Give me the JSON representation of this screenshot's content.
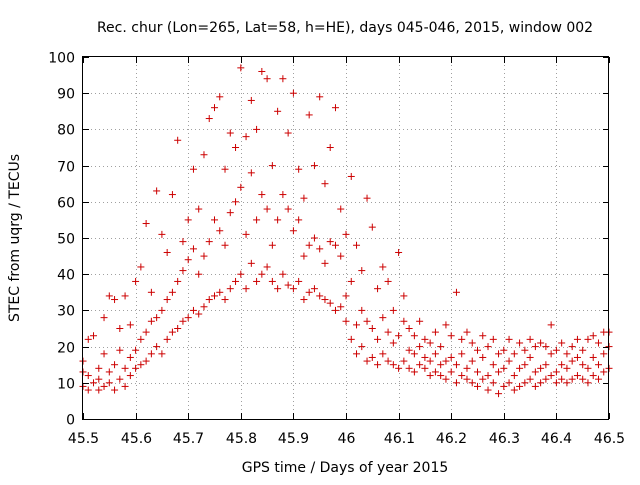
{
  "chart_data": {
    "type": "scatter",
    "title": "Rec. chur (Lon=265, Lat=58, h=HE), days 045-046, 2015, window 002",
    "xlabel": "GPS time / Days of year 2015",
    "ylabel": "STEC from uqrg / TECUs",
    "xlim": [
      45.5,
      46.5
    ],
    "ylim": [
      0,
      100
    ],
    "xticks": [
      45.5,
      45.6,
      45.7,
      45.8,
      45.9,
      46,
      46.1,
      46.2,
      46.3,
      46.4,
      46.5
    ],
    "xtick_labels": [
      "45.5",
      "45.6",
      "45.7",
      "45.8",
      "45.9",
      "46",
      "46.1",
      "46.2",
      "46.3",
      "46.4",
      "46.5"
    ],
    "yticks": [
      0,
      10,
      20,
      30,
      40,
      50,
      60,
      70,
      80,
      90,
      100
    ],
    "ytick_labels": [
      "0",
      "10",
      "20",
      "30",
      "40",
      "50",
      "60",
      "70",
      "80",
      "90",
      "100"
    ],
    "grid": true,
    "marker": "+",
    "color": "#cc0000",
    "series": [
      {
        "points": [
          [
            45.5,
            9
          ],
          [
            45.5,
            13
          ],
          [
            45.5,
            16
          ],
          [
            45.51,
            8
          ],
          [
            45.51,
            12
          ],
          [
            45.51,
            22
          ],
          [
            45.52,
            10
          ],
          [
            45.52,
            23
          ],
          [
            45.53,
            8
          ],
          [
            45.53,
            11
          ],
          [
            45.53,
            14
          ],
          [
            45.54,
            9
          ],
          [
            45.54,
            18
          ],
          [
            45.54,
            28
          ],
          [
            45.55,
            10
          ],
          [
            45.55,
            13
          ],
          [
            45.55,
            34
          ],
          [
            45.56,
            8
          ],
          [
            45.56,
            15
          ],
          [
            45.56,
            33
          ],
          [
            45.57,
            11
          ],
          [
            45.57,
            19
          ],
          [
            45.57,
            25
          ],
          [
            45.58,
            9
          ],
          [
            45.58,
            14
          ],
          [
            45.58,
            34
          ],
          [
            45.59,
            12
          ],
          [
            45.59,
            17
          ],
          [
            45.59,
            26
          ],
          [
            45.6,
            14
          ],
          [
            45.6,
            19
          ],
          [
            45.6,
            38
          ],
          [
            45.61,
            15
          ],
          [
            45.61,
            22
          ],
          [
            45.61,
            42
          ],
          [
            45.62,
            16
          ],
          [
            45.62,
            24
          ],
          [
            45.62,
            54
          ],
          [
            45.63,
            18
          ],
          [
            45.63,
            27
          ],
          [
            45.63,
            35
          ],
          [
            45.64,
            20
          ],
          [
            45.64,
            28
          ],
          [
            45.64,
            63
          ],
          [
            45.65,
            18
          ],
          [
            45.65,
            30
          ],
          [
            45.65,
            51
          ],
          [
            45.66,
            22
          ],
          [
            45.66,
            33
          ],
          [
            45.66,
            46
          ],
          [
            45.67,
            24
          ],
          [
            45.67,
            35
          ],
          [
            45.67,
            62
          ],
          [
            45.68,
            25
          ],
          [
            45.68,
            38
          ],
          [
            45.68,
            77
          ],
          [
            45.69,
            27
          ],
          [
            45.69,
            41
          ],
          [
            45.69,
            49
          ],
          [
            45.7,
            28
          ],
          [
            45.7,
            44
          ],
          [
            45.7,
            55
          ],
          [
            45.71,
            30
          ],
          [
            45.71,
            47
          ],
          [
            45.71,
            69
          ],
          [
            45.72,
            29
          ],
          [
            45.72,
            40
          ],
          [
            45.72,
            58
          ],
          [
            45.73,
            31
          ],
          [
            45.73,
            45
          ],
          [
            45.73,
            73
          ],
          [
            45.74,
            33
          ],
          [
            45.74,
            49
          ],
          [
            45.74,
            83
          ],
          [
            45.75,
            34
          ],
          [
            45.75,
            55
          ],
          [
            45.75,
            86
          ],
          [
            45.76,
            35
          ],
          [
            45.76,
            52
          ],
          [
            45.76,
            89
          ],
          [
            45.77,
            33
          ],
          [
            45.77,
            48
          ],
          [
            45.77,
            69
          ],
          [
            45.78,
            36
          ],
          [
            45.78,
            57
          ],
          [
            45.78,
            79
          ],
          [
            45.79,
            38
          ],
          [
            45.79,
            60
          ],
          [
            45.79,
            75
          ],
          [
            45.8,
            40
          ],
          [
            45.8,
            64
          ],
          [
            45.8,
            97
          ],
          [
            45.81,
            36
          ],
          [
            45.81,
            51
          ],
          [
            45.81,
            78
          ],
          [
            45.82,
            43
          ],
          [
            45.82,
            68
          ],
          [
            45.82,
            88
          ],
          [
            45.83,
            38
          ],
          [
            45.83,
            55
          ],
          [
            45.83,
            80
          ],
          [
            45.84,
            40
          ],
          [
            45.84,
            62
          ],
          [
            45.84,
            96
          ],
          [
            45.85,
            42
          ],
          [
            45.85,
            58
          ],
          [
            45.85,
            94
          ],
          [
            45.86,
            38
          ],
          [
            45.86,
            48
          ],
          [
            45.86,
            70
          ],
          [
            45.87,
            36
          ],
          [
            45.87,
            55
          ],
          [
            45.87,
            85
          ],
          [
            45.88,
            40
          ],
          [
            45.88,
            62
          ],
          [
            45.88,
            94
          ],
          [
            45.89,
            37
          ],
          [
            45.89,
            58
          ],
          [
            45.89,
            79
          ],
          [
            45.9,
            36
          ],
          [
            45.9,
            52
          ],
          [
            45.9,
            90
          ],
          [
            45.91,
            38
          ],
          [
            45.91,
            55
          ],
          [
            45.91,
            69
          ],
          [
            45.92,
            33
          ],
          [
            45.92,
            45
          ],
          [
            45.92,
            61
          ],
          [
            45.93,
            35
          ],
          [
            45.93,
            48
          ],
          [
            45.93,
            84
          ],
          [
            45.94,
            36
          ],
          [
            45.94,
            50
          ],
          [
            45.94,
            70
          ],
          [
            45.95,
            34
          ],
          [
            45.95,
            47
          ],
          [
            45.95,
            89
          ],
          [
            45.96,
            33
          ],
          [
            45.96,
            43
          ],
          [
            45.96,
            65
          ],
          [
            45.97,
            32
          ],
          [
            45.97,
            49
          ],
          [
            45.97,
            75
          ],
          [
            45.98,
            30
          ],
          [
            45.98,
            48
          ],
          [
            45.98,
            86
          ],
          [
            45.99,
            31
          ],
          [
            45.99,
            45
          ],
          [
            45.99,
            58
          ],
          [
            46.0,
            27
          ],
          [
            46.0,
            34
          ],
          [
            46.0,
            51
          ],
          [
            46.01,
            22
          ],
          [
            46.01,
            38
          ],
          [
            46.01,
            67
          ],
          [
            46.02,
            18
          ],
          [
            46.02,
            26
          ],
          [
            46.02,
            48
          ],
          [
            46.03,
            20
          ],
          [
            46.03,
            30
          ],
          [
            46.03,
            41
          ],
          [
            46.04,
            16
          ],
          [
            46.04,
            27
          ],
          [
            46.04,
            61
          ],
          [
            46.05,
            17
          ],
          [
            46.05,
            25
          ],
          [
            46.05,
            53
          ],
          [
            46.06,
            15
          ],
          [
            46.06,
            22
          ],
          [
            46.06,
            36
          ],
          [
            46.07,
            18
          ],
          [
            46.07,
            28
          ],
          [
            46.07,
            42
          ],
          [
            46.08,
            16
          ],
          [
            46.08,
            24
          ],
          [
            46.08,
            38
          ],
          [
            46.09,
            15
          ],
          [
            46.09,
            21
          ],
          [
            46.09,
            30
          ],
          [
            46.1,
            14
          ],
          [
            46.1,
            23
          ],
          [
            46.1,
            46
          ],
          [
            46.11,
            16
          ],
          [
            46.11,
            27
          ],
          [
            46.11,
            34
          ],
          [
            46.12,
            14
          ],
          [
            46.12,
            19
          ],
          [
            46.12,
            25
          ],
          [
            46.13,
            13
          ],
          [
            46.13,
            18
          ],
          [
            46.13,
            23
          ],
          [
            46.14,
            15
          ],
          [
            46.14,
            20
          ],
          [
            46.14,
            27
          ],
          [
            46.15,
            14
          ],
          [
            46.15,
            17
          ],
          [
            46.15,
            22
          ],
          [
            46.16,
            12
          ],
          [
            46.16,
            16
          ],
          [
            46.16,
            21
          ],
          [
            46.17,
            13
          ],
          [
            46.17,
            18
          ],
          [
            46.17,
            24
          ],
          [
            46.18,
            12
          ],
          [
            46.18,
            15
          ],
          [
            46.18,
            20
          ],
          [
            46.19,
            11
          ],
          [
            46.19,
            16
          ],
          [
            46.19,
            26
          ],
          [
            46.2,
            13
          ],
          [
            46.2,
            17
          ],
          [
            46.2,
            23
          ],
          [
            46.21,
            10
          ],
          [
            46.21,
            15
          ],
          [
            46.21,
            35
          ],
          [
            46.22,
            12
          ],
          [
            46.22,
            18
          ],
          [
            46.22,
            22
          ],
          [
            46.23,
            11
          ],
          [
            46.23,
            14
          ],
          [
            46.23,
            24
          ],
          [
            46.24,
            10
          ],
          [
            46.24,
            16
          ],
          [
            46.24,
            21
          ],
          [
            46.25,
            9
          ],
          [
            46.25,
            13
          ],
          [
            46.25,
            19
          ],
          [
            46.26,
            11
          ],
          [
            46.26,
            17
          ],
          [
            46.26,
            23
          ],
          [
            46.27,
            8
          ],
          [
            46.27,
            12
          ],
          [
            46.27,
            20
          ],
          [
            46.28,
            10
          ],
          [
            46.28,
            15
          ],
          [
            46.28,
            22
          ],
          [
            46.29,
            7
          ],
          [
            46.29,
            13
          ],
          [
            46.29,
            18
          ],
          [
            46.3,
            9
          ],
          [
            46.3,
            14
          ],
          [
            46.3,
            19
          ],
          [
            46.31,
            10
          ],
          [
            46.31,
            16
          ],
          [
            46.31,
            22
          ],
          [
            46.32,
            8
          ],
          [
            46.32,
            12
          ],
          [
            46.32,
            18
          ],
          [
            46.33,
            9
          ],
          [
            46.33,
            14
          ],
          [
            46.33,
            21
          ],
          [
            46.34,
            10
          ],
          [
            46.34,
            15
          ],
          [
            46.34,
            19
          ],
          [
            46.35,
            11
          ],
          [
            46.35,
            17
          ],
          [
            46.35,
            22
          ],
          [
            46.36,
            9
          ],
          [
            46.36,
            13
          ],
          [
            46.36,
            20
          ],
          [
            46.37,
            10
          ],
          [
            46.37,
            14
          ],
          [
            46.37,
            21
          ],
          [
            46.38,
            11
          ],
          [
            46.38,
            15
          ],
          [
            46.38,
            20
          ],
          [
            46.39,
            12
          ],
          [
            46.39,
            18
          ],
          [
            46.39,
            26
          ],
          [
            46.4,
            10
          ],
          [
            46.4,
            13
          ],
          [
            46.4,
            19
          ],
          [
            46.41,
            11
          ],
          [
            46.41,
            15
          ],
          [
            46.41,
            21
          ],
          [
            46.42,
            10
          ],
          [
            46.42,
            14
          ],
          [
            46.42,
            18
          ],
          [
            46.43,
            11
          ],
          [
            46.43,
            16
          ],
          [
            46.43,
            20
          ],
          [
            46.44,
            12
          ],
          [
            46.44,
            17
          ],
          [
            46.44,
            22
          ],
          [
            46.45,
            11
          ],
          [
            46.45,
            15
          ],
          [
            46.45,
            19
          ],
          [
            46.46,
            10
          ],
          [
            46.46,
            14
          ],
          [
            46.46,
            22
          ],
          [
            46.47,
            12
          ],
          [
            46.47,
            17
          ],
          [
            46.47,
            23
          ],
          [
            46.48,
            11
          ],
          [
            46.48,
            15
          ],
          [
            46.48,
            21
          ],
          [
            46.49,
            13
          ],
          [
            46.49,
            18
          ],
          [
            46.49,
            24
          ],
          [
            46.5,
            14
          ],
          [
            46.5,
            20
          ],
          [
            46.5,
            24
          ]
        ]
      }
    ]
  }
}
